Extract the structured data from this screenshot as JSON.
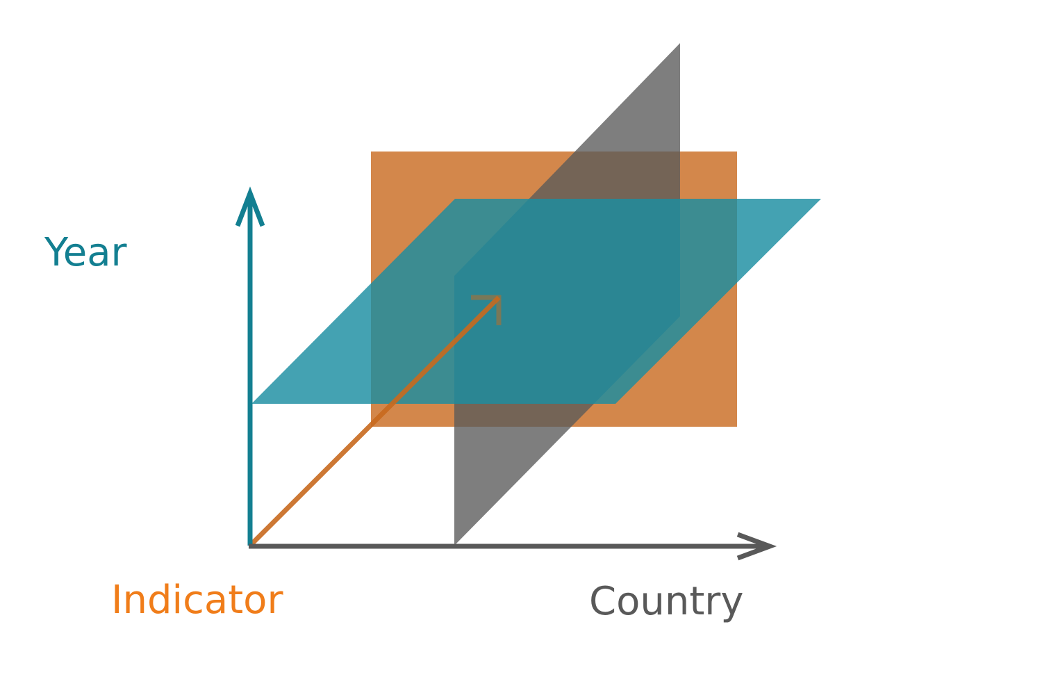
{
  "axes": {
    "year": {
      "label": "Year",
      "color": "#137f91"
    },
    "indicator": {
      "label": "Indicator",
      "color": "#f07d1a"
    },
    "country": {
      "label": "Country",
      "color": "#595959"
    }
  },
  "planes": {
    "indicator_plane_color": "#c8691e",
    "year_plane_color": "#1b8ea1",
    "country_plane_color": "#5a5a5a"
  }
}
